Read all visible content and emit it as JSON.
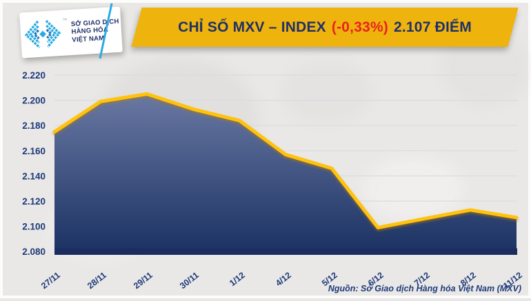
{
  "header": {
    "logo": {
      "line1": "SỞ GIAO DỊCH",
      "line2": "HÀNG HÓA",
      "line3": "VIỆT NAM",
      "trademark": "™"
    },
    "title": {
      "prefix": "CHỈ SỐ MXV – INDEX",
      "change": "(-0,33%)",
      "suffix": "2.107 ĐIỂM"
    }
  },
  "chart_data": {
    "type": "area",
    "title": "CHỈ SỐ MXV – INDEX (-0,33%) 2.107 ĐIỂM",
    "categories": [
      "27/11",
      "28/11",
      "29/11",
      "30/11",
      "1/12",
      "4/12",
      "5/12",
      "6/12",
      "7/12",
      "8/12",
      "11/12"
    ],
    "values": [
      2.175,
      2.199,
      2.205,
      2.193,
      2.184,
      2.157,
      2.146,
      2.099,
      2.106,
      2.113,
      2.107
    ],
    "y_tick_labels": [
      "2.220",
      "2.200",
      "2.180",
      "2.160",
      "2.140",
      "2.120",
      "2.100",
      "2.080"
    ],
    "y_tick_values": [
      2.22,
      2.2,
      2.18,
      2.16,
      2.14,
      2.12,
      2.1,
      2.08
    ],
    "ylim": [
      2.08,
      2.228
    ],
    "xlabel": "",
    "ylabel": "",
    "grid": "horizontal",
    "legend": "none",
    "last_value": "2.107",
    "change_percent": "-0,33%"
  },
  "footer": {
    "source": "Nguồn: Sở Giao dịch Hàng hóa Việt Nam (MXV)"
  },
  "colors": {
    "banner_yellow": "#efb30d",
    "navy_text": "#1f3068",
    "red_change": "#e8241c",
    "line_yellow": "#ffc20e",
    "line_shadow": "#dd9400",
    "area_top": "#6e7ca6",
    "area_bottom": "#1b3263",
    "axis_bar": "#1b2d5f",
    "gridline": "#d8dbe3",
    "axis_label": "#1e3a7a",
    "logo_cyan": "#29abe2",
    "logo_blue": "#1b75bc",
    "background": "#e9e8e6"
  }
}
